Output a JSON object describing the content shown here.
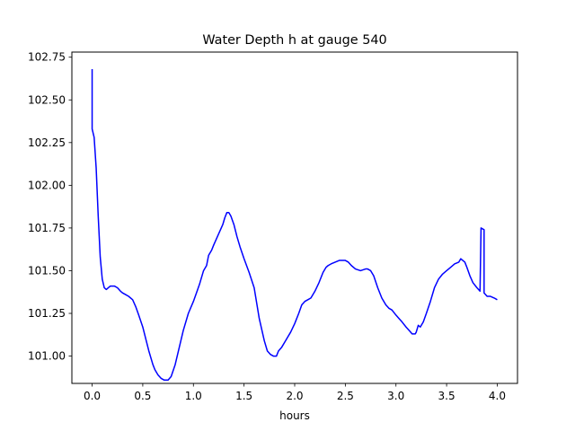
{
  "chart_data": {
    "type": "line",
    "title": "Water Depth h at gauge 540",
    "xlabel": "hours",
    "ylabel": "",
    "xlim": [
      -0.2,
      4.2
    ],
    "ylim": [
      100.84,
      102.78
    ],
    "grid": false,
    "legend": "none",
    "x_ticks": [
      0.0,
      0.5,
      1.0,
      1.5,
      2.0,
      2.5,
      3.0,
      3.5,
      4.0
    ],
    "x_tick_labels": [
      "0.0",
      "0.5",
      "1.0",
      "1.5",
      "2.0",
      "2.5",
      "3.0",
      "3.5",
      "4.0"
    ],
    "y_ticks": [
      101.0,
      101.25,
      101.5,
      101.75,
      102.0,
      102.25,
      102.5,
      102.75
    ],
    "y_tick_labels": [
      "101.00",
      "101.25",
      "101.50",
      "101.75",
      "102.00",
      "102.25",
      "102.50",
      "102.75"
    ],
    "series": [
      {
        "color": "#0000ff",
        "x": [
          0.0,
          0.0,
          0.02,
          0.04,
          0.06,
          0.08,
          0.1,
          0.12,
          0.14,
          0.16,
          0.18,
          0.2,
          0.22,
          0.25,
          0.28,
          0.3,
          0.33,
          0.36,
          0.4,
          0.43,
          0.46,
          0.5,
          0.53,
          0.56,
          0.6,
          0.62,
          0.65,
          0.68,
          0.71,
          0.75,
          0.78,
          0.82,
          0.86,
          0.9,
          0.95,
          1.0,
          1.03,
          1.06,
          1.1,
          1.13,
          1.15,
          1.18,
          1.2,
          1.23,
          1.26,
          1.29,
          1.31,
          1.33,
          1.35,
          1.37,
          1.4,
          1.43,
          1.46,
          1.5,
          1.55,
          1.6,
          1.65,
          1.7,
          1.73,
          1.76,
          1.79,
          1.82,
          1.84,
          1.87,
          1.9,
          1.93,
          1.96,
          2.0,
          2.04,
          2.07,
          2.1,
          2.13,
          2.16,
          2.2,
          2.24,
          2.28,
          2.31,
          2.33,
          2.36,
          2.4,
          2.44,
          2.48,
          2.5,
          2.53,
          2.56,
          2.6,
          2.65,
          2.7,
          2.72,
          2.75,
          2.78,
          2.82,
          2.86,
          2.9,
          2.93,
          2.96,
          3.0,
          3.03,
          3.06,
          3.1,
          3.13,
          3.16,
          3.19,
          3.2,
          3.22,
          3.24,
          3.27,
          3.3,
          3.34,
          3.38,
          3.42,
          3.46,
          3.5,
          3.54,
          3.58,
          3.62,
          3.64,
          3.66,
          3.68,
          3.7,
          3.73,
          3.76,
          3.8,
          3.83,
          3.84,
          3.84,
          3.87,
          3.87,
          3.9,
          3.93,
          3.97,
          4.0
        ],
        "y": [
          102.68,
          102.33,
          102.28,
          102.1,
          101.82,
          101.58,
          101.45,
          101.4,
          101.39,
          101.4,
          101.41,
          101.41,
          101.41,
          101.4,
          101.38,
          101.37,
          101.36,
          101.35,
          101.33,
          101.29,
          101.24,
          101.17,
          101.1,
          101.03,
          100.95,
          100.92,
          100.89,
          100.87,
          100.86,
          100.86,
          100.88,
          100.95,
          101.05,
          101.15,
          101.25,
          101.32,
          101.37,
          101.42,
          101.5,
          101.53,
          101.59,
          101.62,
          101.65,
          101.69,
          101.73,
          101.77,
          101.81,
          101.84,
          101.84,
          101.82,
          101.77,
          101.7,
          101.64,
          101.57,
          101.49,
          101.4,
          101.22,
          101.09,
          101.03,
          101.01,
          101.0,
          101.0,
          101.03,
          101.05,
          101.08,
          101.11,
          101.14,
          101.19,
          101.25,
          101.3,
          101.32,
          101.33,
          101.34,
          101.38,
          101.43,
          101.49,
          101.52,
          101.53,
          101.54,
          101.55,
          101.56,
          101.56,
          101.56,
          101.55,
          101.53,
          101.51,
          101.5,
          101.51,
          101.51,
          101.5,
          101.47,
          101.4,
          101.34,
          101.3,
          101.28,
          101.27,
          101.24,
          101.22,
          101.2,
          101.17,
          101.15,
          101.13,
          101.13,
          101.14,
          101.18,
          101.17,
          101.2,
          101.25,
          101.32,
          101.4,
          101.45,
          101.48,
          101.5,
          101.52,
          101.54,
          101.55,
          101.57,
          101.56,
          101.55,
          101.52,
          101.47,
          101.43,
          101.4,
          101.38,
          101.75,
          101.75,
          101.74,
          101.37,
          101.35,
          101.35,
          101.34,
          101.33
        ]
      }
    ]
  }
}
